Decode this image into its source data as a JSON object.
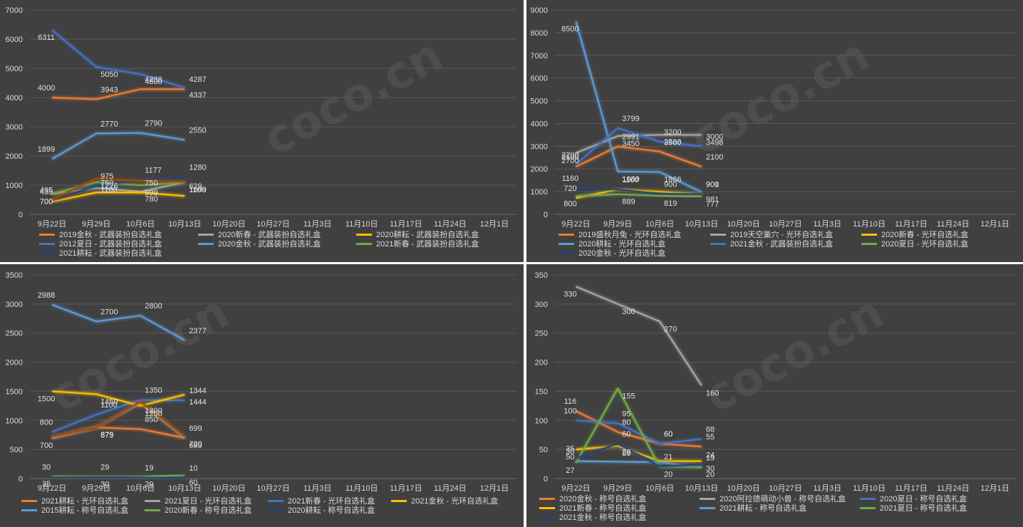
{
  "x_categories": [
    "9月22日",
    "9月29日",
    "10月6日",
    "10月13日",
    "10月20日",
    "10月27日",
    "11月3日",
    "11月10日",
    "11月17日",
    "11月24日",
    "12月1日"
  ],
  "watermark": "coco.cn",
  "chart_data": [
    {
      "type": "line",
      "ylim": [
        0,
        7000
      ],
      "ystep": 1000,
      "series": [
        {
          "name": "2019金秋 - 武器装扮自选礼盒",
          "color": "#ed7d31",
          "values": [
            4000,
            3943,
            4288,
            4287
          ],
          "labels": [
            "4000",
            "3943",
            "4288",
            "4287"
          ]
        },
        {
          "name": "2020新春 - 武器装扮自选礼盒",
          "color": "#a5a5a5",
          "values": [
            700,
            900,
            780,
            1100
          ],
          "labels": [
            "700",
            "",
            "780",
            "1100"
          ]
        },
        {
          "name": "2020耕耘 - 武器装扮自选礼盒",
          "color": "#ffc000",
          "values": [
            435,
            750,
            750,
            629
          ],
          "labels": [
            "435",
            "750",
            "750",
            "629"
          ]
        },
        {
          "name": "2012夏日 - 武器装扮自选礼盒",
          "color": "#4472c4",
          "values": [
            6311,
            5050,
            4800,
            4337
          ],
          "labels": [
            "6311",
            "5050",
            "4800",
            "4337"
          ]
        },
        {
          "name": "2020金秋 - 武器装扮自选礼盒",
          "color": "#5b9bd5",
          "values": [
            1899,
            2770,
            2790,
            2550
          ],
          "labels": [
            "1899",
            "2770",
            "2790",
            "2550"
          ]
        },
        {
          "name": "2021新春 - 武器装扮自选礼盒",
          "color": "#70ad47",
          "values": [
            700,
            1100,
            999,
            1099
          ],
          "labels": [
            "700",
            "1100",
            "999",
            "1099"
          ]
        },
        {
          "name": "2021耕耘 - 武器装扮自选礼盒",
          "color": "#264478",
          "values": [
            495,
            975,
            1177,
            1280
          ],
          "labels": [
            "495",
            "975",
            "1177",
            "1280"
          ]
        },
        {
          "name": "",
          "color": "#9e480e",
          "values": [
            500,
            1226,
            1150,
            1120
          ],
          "labels": [
            "",
            "1226",
            "",
            ""
          ]
        }
      ]
    },
    {
      "type": "line",
      "ylim": [
        0,
        9000
      ],
      "ystep": 1000,
      "series": [
        {
          "name": "2019盛秋月兔 - 光环自选礼盒",
          "color": "#ed7d31",
          "values": [
            2100,
            2991,
            2766,
            2100
          ],
          "labels": [
            "2100",
            "2991",
            "2766",
            "2100"
          ]
        },
        {
          "name": "2019天空巢穴 - 光环自选礼盒",
          "color": "#a5a5a5",
          "values": [
            2700,
            3450,
            3500,
            3498
          ],
          "labels": [
            "2700",
            "3450",
            "3500",
            "3498"
          ]
        },
        {
          "name": "2020新春 - 光环自选礼盒",
          "color": "#ffc000",
          "values": [
            720,
            1100,
            1000,
            900
          ],
          "labels": [
            "720",
            "1100",
            "",
            "900"
          ]
        },
        {
          "name": "2020耕耘 - 光环自选礼盒",
          "color": "#5b9bd5",
          "values": [
            8500,
            1889,
            1866,
            981
          ],
          "labels": [
            "8500",
            "1889",
            "1866",
            "981"
          ]
        },
        {
          "name": "2021金秋 - 武器装扮自选礼盒",
          "color": "#4472c4",
          "values": [
            2200,
            3799,
            3200,
            3000
          ],
          "labels": [
            "2200",
            "3799",
            "3200",
            "3000"
          ]
        },
        {
          "name": "2020夏日 - 光环自选礼盒",
          "color": "#70ad47",
          "values": [
            800,
            889,
            819,
            777
          ],
          "labels": [
            "800",
            "889",
            "819",
            "777"
          ]
        },
        {
          "name": "2020金秋 - 光环自选礼盒",
          "color": "#264478",
          "values": [
            1160,
            1100,
            900,
            901
          ],
          "labels": [
            "1160",
            "",
            "900",
            "901"
          ]
        }
      ]
    },
    {
      "type": "line",
      "ylim": [
        0,
        3500
      ],
      "ystep": 500,
      "series": [
        {
          "name": "2021耕耘 - 光环自选礼盒",
          "color": "#ed7d31",
          "values": [
            700,
            879,
            850,
            699
          ],
          "labels": [
            "",
            "",
            "850",
            "699"
          ]
        },
        {
          "name": "2021夏日 - 光环自选礼盒",
          "color": "#a5a5a5",
          "values": [
            700,
            879,
            1300,
            699
          ],
          "labels": [
            "700",
            "879",
            "1300",
            "699"
          ]
        },
        {
          "name": "2021新春 - 光环自选礼盒",
          "color": "#4472c4",
          "values": [
            800,
            1100,
            1350,
            1344
          ],
          "labels": [
            "800",
            "1100",
            "1350",
            "1344"
          ]
        },
        {
          "name": "2021金秋 - 光环自选礼盒",
          "color": "#ffc000",
          "values": [
            1500,
            1450,
            1250,
            1444
          ],
          "labels": [
            "1500",
            "1450",
            "1250",
            "1444"
          ]
        },
        {
          "name": "2015耕耘 - 称号自选礼盒",
          "color": "#5b9bd5",
          "values": [
            2988,
            2700,
            2800,
            2377
          ],
          "labels": [
            "2988",
            "2700",
            "2800",
            "2377"
          ]
        },
        {
          "name": "2020新春 - 称号自选礼盒",
          "color": "#70ad47",
          "values": [
            35,
            30,
            29,
            60
          ],
          "labels": [
            "35",
            "30",
            "29",
            "60"
          ]
        },
        {
          "name": "2020耕耘 - 称号自选礼盒",
          "color": "#264478",
          "values": [
            30,
            29,
            19,
            10
          ],
          "labels": [
            "30",
            "29",
            "19",
            "10"
          ]
        },
        {
          "name": "",
          "color": "#9e480e",
          "values": [
            720,
            875,
            1320,
            720
          ],
          "labels": [
            "",
            "875",
            "",
            "720"
          ]
        }
      ]
    },
    {
      "type": "line",
      "ylim": [
        0,
        350
      ],
      "ystep": 50,
      "series": [
        {
          "name": "2020金秋 - 称号自选礼盒",
          "color": "#ed7d31",
          "values": [
            116,
            80,
            60,
            55
          ],
          "labels": [
            "116",
            "80",
            "60",
            "55"
          ]
        },
        {
          "name": "2020阿拉德萌动小兽 - 称号自选礼盒",
          "color": "#a5a5a5",
          "values": [
            330,
            300,
            270,
            160
          ],
          "labels": [
            "330",
            "300",
            "270",
            "160"
          ]
        },
        {
          "name": "2020夏日 - 称号自选礼盒",
          "color": "#4472c4",
          "values": [
            100,
            95,
            60,
            68
          ],
          "labels": [
            "100",
            "95",
            "60",
            "68"
          ]
        },
        {
          "name": "2021新春 - 称号自选礼盒",
          "color": "#ffc000",
          "values": [
            50,
            56,
            30,
            30
          ],
          "labels": [
            "50",
            "56",
            "",
            "30"
          ]
        },
        {
          "name": "2021耕耘 - 称号自选礼盒",
          "color": "#5b9bd5",
          "values": [
            30,
            29,
            28,
            19
          ],
          "labels": [
            "30",
            "29",
            "",
            "19"
          ]
        },
        {
          "name": "2021夏日 - 称号自选礼盒",
          "color": "#70ad47",
          "values": [
            27,
            155,
            20,
            20
          ],
          "labels": [
            "27",
            "155",
            "20",
            "20"
          ]
        },
        {
          "name": "2021金秋 - 称号自选礼盒",
          "color": "#264478",
          "values": [
            35,
            60,
            21,
            24
          ],
          "labels": [
            "35",
            "60",
            "21",
            "24"
          ]
        }
      ]
    }
  ]
}
